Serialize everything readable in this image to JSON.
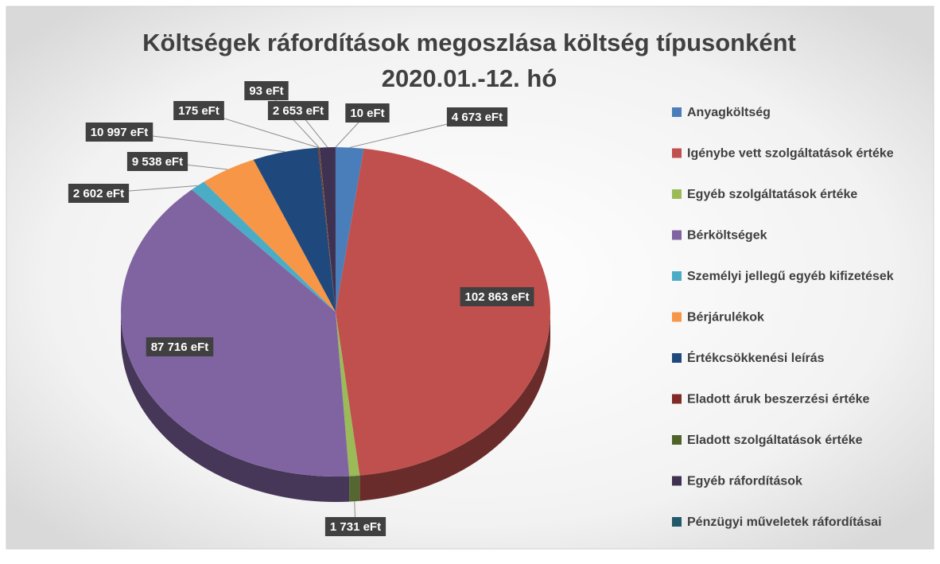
{
  "chart_data": {
    "type": "pie",
    "title": "Költségek ráfordítások megoszlása költség típusonként",
    "subtitle": "2020.01.-12. hó",
    "categories": [
      "Anyagköltség",
      "Igénybe vett szolgáltatások értéke",
      "Egyéb szolgáltatások értéke",
      "Bérköltségek",
      "Személyi jellegű egyéb kifizetések",
      "Bérjárulékok",
      "Értékcsökkenési leírás",
      "Eladott áruk beszerzési értéke",
      "Eladott szolgáltatások értéke",
      "Egyéb ráfordítások",
      "Pénzügyi műveletek ráfordításai"
    ],
    "values": [
      4673,
      102863,
      1731,
      87716,
      2602,
      9538,
      10997,
      175,
      93,
      2653,
      10
    ],
    "value_labels": [
      "4 673 eFt",
      "102 863 eFt",
      "1 731 eFt",
      "87 716 eFt",
      "2 602 eFt",
      "9 538 eFt",
      "10 997 eFt",
      "175 eFt",
      "93 eFt",
      "2 653 eFt",
      "10 eFt"
    ],
    "colors": [
      "#4a7ebb",
      "#c0504d",
      "#9bbb59",
      "#8064a2",
      "#4bacc6",
      "#f79646",
      "#1f497d",
      "#7f2a26",
      "#4f6228",
      "#3f3151",
      "#215968"
    ],
    "legend": "right",
    "3d": true
  }
}
